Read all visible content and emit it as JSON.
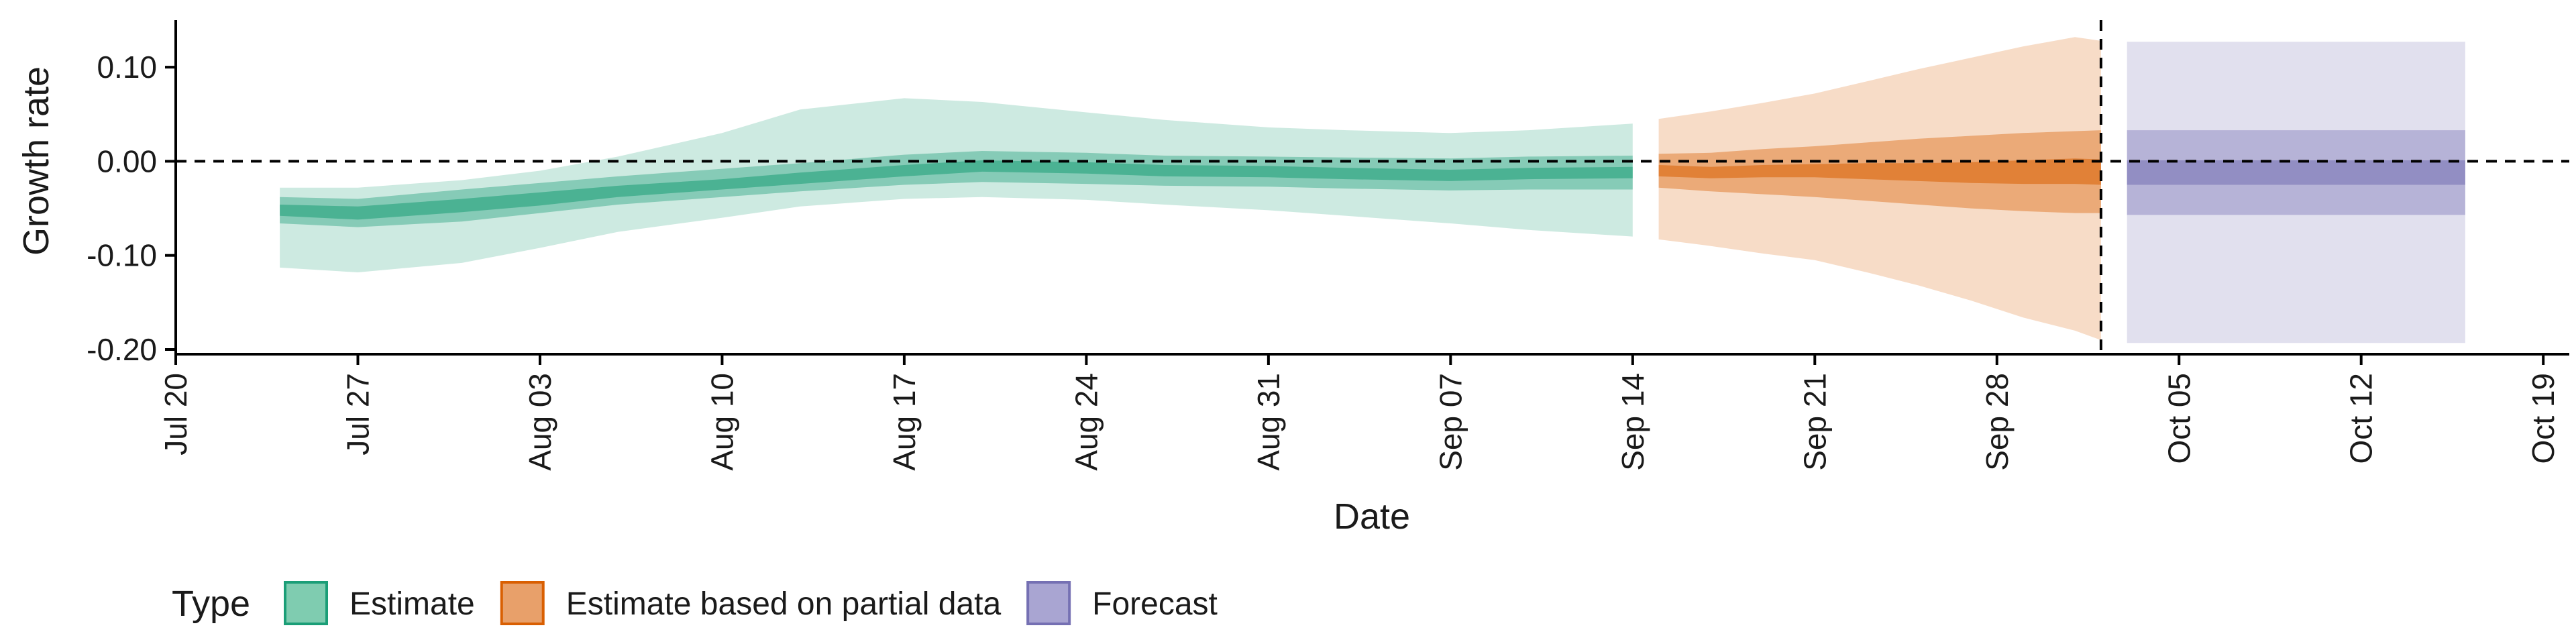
{
  "chart_data": {
    "type": "area",
    "title": "",
    "xlabel": "Date",
    "ylabel": "Growth rate",
    "x_range": [
      "2020-07-20",
      "2020-10-20"
    ],
    "ylim": [
      -0.205,
      0.15
    ],
    "y_ticks": [
      0.1,
      0.0,
      -0.1,
      -0.2
    ],
    "y_tick_labels": [
      "0.10",
      "0.00",
      "-0.10",
      "-0.20"
    ],
    "x_ticks": [
      "2020-07-20",
      "2020-07-27",
      "2020-08-03",
      "2020-08-10",
      "2020-08-17",
      "2020-08-24",
      "2020-08-31",
      "2020-09-07",
      "2020-09-14",
      "2020-09-21",
      "2020-09-28",
      "2020-10-05",
      "2020-10-12",
      "2020-10-19"
    ],
    "x_tick_labels": [
      "Jul 20",
      "Jul 27",
      "Aug 03",
      "Aug 10",
      "Aug 17",
      "Aug 24",
      "Aug 31",
      "Sep 07",
      "Sep 14",
      "Sep 21",
      "Sep 28",
      "Oct 05",
      "Oct 12",
      "Oct 19"
    ],
    "reference_hline": 0.0,
    "reference_vline": "2020-10-02",
    "grid": false,
    "legend": {
      "title": "Type",
      "position": "bottom",
      "entries": [
        {
          "label": "Estimate",
          "fill": "#7fccb0",
          "border": "#1b9e77"
        },
        {
          "label": "Estimate based on partial data",
          "fill": "#e8a06a",
          "border": "#d95f02"
        },
        {
          "label": "Forecast",
          "fill": "#a9a5d2",
          "border": "#7570b3"
        }
      ]
    },
    "series": [
      {
        "name": "Estimate",
        "color": "#1b9e77",
        "x": [
          "2020-07-24",
          "2020-07-27",
          "2020-07-31",
          "2020-08-03",
          "2020-08-06",
          "2020-08-10",
          "2020-08-13",
          "2020-08-17",
          "2020-08-20",
          "2020-08-24",
          "2020-08-27",
          "2020-08-31",
          "2020-09-03",
          "2020-09-07",
          "2020-09-10",
          "2020-09-14"
        ],
        "median": [
          -0.052,
          -0.055,
          -0.047,
          -0.04,
          -0.032,
          -0.025,
          -0.018,
          -0.01,
          -0.005,
          -0.007,
          -0.01,
          -0.011,
          -0.013,
          -0.015,
          -0.013,
          -0.012
        ],
        "lower_20": [
          -0.058,
          -0.062,
          -0.054,
          -0.047,
          -0.038,
          -0.03,
          -0.024,
          -0.016,
          -0.011,
          -0.013,
          -0.016,
          -0.017,
          -0.019,
          -0.021,
          -0.019,
          -0.018
        ],
        "upper_20": [
          -0.046,
          -0.048,
          -0.04,
          -0.033,
          -0.026,
          -0.019,
          -0.012,
          -0.004,
          0.001,
          -0.001,
          -0.004,
          -0.005,
          -0.007,
          -0.009,
          -0.007,
          -0.006
        ],
        "lower_50": [
          -0.066,
          -0.07,
          -0.064,
          -0.055,
          -0.046,
          -0.038,
          -0.032,
          -0.025,
          -0.022,
          -0.024,
          -0.026,
          -0.027,
          -0.029,
          -0.031,
          -0.03,
          -0.03
        ],
        "upper_50": [
          -0.038,
          -0.04,
          -0.03,
          -0.023,
          -0.016,
          -0.008,
          -0.002,
          0.007,
          0.011,
          0.009,
          0.006,
          0.005,
          0.004,
          0.003,
          0.005,
          0.006
        ],
        "lower_90": [
          -0.113,
          -0.118,
          -0.108,
          -0.092,
          -0.075,
          -0.06,
          -0.048,
          -0.04,
          -0.038,
          -0.041,
          -0.046,
          -0.052,
          -0.058,
          -0.066,
          -0.073,
          -0.08
        ],
        "upper_90": [
          -0.028,
          -0.028,
          -0.02,
          -0.01,
          0.005,
          0.03,
          0.055,
          0.067,
          0.063,
          0.052,
          0.044,
          0.036,
          0.033,
          0.03,
          0.033,
          0.04
        ]
      },
      {
        "name": "Estimate based on partial data",
        "color": "#d95f02",
        "x": [
          "2020-09-15",
          "2020-09-17",
          "2020-09-19",
          "2020-09-21",
          "2020-09-23",
          "2020-09-25",
          "2020-09-27",
          "2020-09-29",
          "2020-10-01",
          "2020-10-02"
        ],
        "median": [
          -0.01,
          -0.012,
          -0.011,
          -0.01,
          -0.011,
          -0.012,
          -0.013,
          -0.012,
          -0.011,
          -0.012
        ],
        "lower_20": [
          -0.016,
          -0.018,
          -0.017,
          -0.017,
          -0.019,
          -0.021,
          -0.023,
          -0.024,
          -0.024,
          -0.025
        ],
        "upper_20": [
          -0.004,
          -0.006,
          -0.004,
          -0.003,
          -0.002,
          -0.002,
          -0.001,
          0.001,
          0.003,
          0.002
        ],
        "lower_50": [
          -0.028,
          -0.032,
          -0.035,
          -0.038,
          -0.042,
          -0.046,
          -0.05,
          -0.053,
          -0.055,
          -0.055
        ],
        "upper_50": [
          0.008,
          0.009,
          0.013,
          0.016,
          0.02,
          0.024,
          0.027,
          0.03,
          0.032,
          0.033
        ],
        "lower_90": [
          -0.083,
          -0.09,
          -0.098,
          -0.105,
          -0.118,
          -0.132,
          -0.148,
          -0.166,
          -0.18,
          -0.19
        ],
        "upper_90": [
          0.045,
          0.053,
          0.062,
          0.072,
          0.085,
          0.098,
          0.11,
          0.122,
          0.132,
          0.128
        ]
      },
      {
        "name": "Forecast",
        "color": "#7570b3",
        "x": [
          "2020-10-03",
          "2020-10-16"
        ],
        "median": [
          -0.012,
          -0.012
        ],
        "lower_20": [
          -0.025,
          -0.025
        ],
        "upper_20": [
          0.001,
          0.001
        ],
        "lower_50": [
          -0.057,
          -0.057
        ],
        "upper_50": [
          0.033,
          0.033
        ],
        "lower_90": [
          -0.193,
          -0.193
        ],
        "upper_90": [
          0.127,
          0.127
        ]
      }
    ]
  }
}
